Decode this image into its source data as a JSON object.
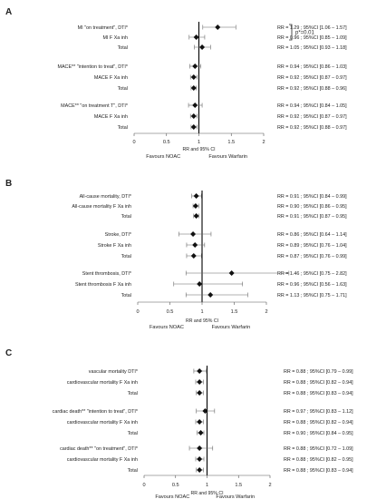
{
  "chart_data": [
    {
      "panel": "A",
      "type": "forest",
      "xlabel": "RR and 95% CI",
      "xlim": [
        0,
        2
      ],
      "xticks": [
        0,
        0.5,
        1,
        1.5,
        2
      ],
      "xtick_labels": [
        "0",
        "0.5",
        "1",
        "1.5",
        "2"
      ],
      "reference_line": 1,
      "favours_left": "Favours NOAC",
      "favours_right": "Favours Warfarin",
      "annotation": "p*=0.01",
      "groups": [
        {
          "rows": [
            {
              "label": "MI \"on treatment\", DTI*",
              "rr": 1.29,
              "lo": 1.06,
              "hi": 1.57,
              "text": "RR = 1.29 ; 95%CI [1.06 – 1.57]"
            },
            {
              "label": "MI  F Xa inh",
              "rr": 0.96,
              "lo": 0.85,
              "hi": 1.09,
              "text": "RR = 0.96 ; 95%CI [0.85 – 1.09]"
            },
            {
              "label": "Total",
              "rr": 1.05,
              "lo": 0.93,
              "hi": 1.18,
              "text": "RR = 1.05 ; 95%CI [0.93 – 1.18]"
            }
          ]
        },
        {
          "rows": [
            {
              "label": "MACE** \"intention to treat\", DTI*",
              "rr": 0.94,
              "lo": 0.86,
              "hi": 1.03,
              "text": "RR = 0.94 ; 95%CI [0.86 – 1.03]"
            },
            {
              "label": "MACE  F Xa inh",
              "rr": 0.92,
              "lo": 0.87,
              "hi": 0.97,
              "text": "RR = 0.92 ; 95%CI [0.87 – 0.97]"
            },
            {
              "label": "Total",
              "rr": 0.92,
              "lo": 0.88,
              "hi": 0.96,
              "text": "RR = 0.92 ; 95%CI [0.88 – 0.96]"
            }
          ]
        },
        {
          "rows": [
            {
              "label": "MACE** \"on treatment T\", DTI*",
              "rr": 0.94,
              "lo": 0.84,
              "hi": 1.05,
              "text": "RR = 0.94 ; 95%CI [0.84 – 1.05]"
            },
            {
              "label": "MACE F Xa inh",
              "rr": 0.92,
              "lo": 0.87,
              "hi": 0.97,
              "text": "RR = 0.92 ; 95%CI [0.87 – 0.97]"
            },
            {
              "label": "Total",
              "rr": 0.92,
              "lo": 0.88,
              "hi": 0.97,
              "text": "RR = 0.92 ; 95%CI [0.88 – 0.97]"
            }
          ]
        }
      ]
    },
    {
      "panel": "B",
      "type": "forest",
      "xlabel": "RR and 95% CI",
      "xlim": [
        0,
        2
      ],
      "xticks": [
        0,
        0.5,
        1,
        1.5,
        2
      ],
      "xtick_labels": [
        "0",
        "0.5",
        "1",
        "1.5",
        "2"
      ],
      "reference_line": 1,
      "favours_left": "Favours NOAC",
      "favours_right": "Favours Warfarin",
      "groups": [
        {
          "rows": [
            {
              "label": "All-cause mortality, DTI*",
              "rr": 0.91,
              "lo": 0.84,
              "hi": 0.99,
              "text": "RR = 0.91 ; 95%CI [0.84 – 0.99]"
            },
            {
              "label": "All-cause mortality F Xa inh",
              "rr": 0.9,
              "lo": 0.86,
              "hi": 0.95,
              "text": "RR = 0.90 ; 95%CI [0.86 – 0.95]"
            },
            {
              "label": "Total",
              "rr": 0.91,
              "lo": 0.87,
              "hi": 0.95,
              "text": "RR = 0.91 ; 95%CI [0.87 – 0.95]"
            }
          ]
        },
        {
          "rows": [
            {
              "label": "Stroke, DTI*",
              "rr": 0.86,
              "lo": 0.64,
              "hi": 1.14,
              "text": "RR = 0.86 ; 95%CI [0.64 – 1.14]"
            },
            {
              "label": "Stroke  F Xa inh",
              "rr": 0.89,
              "lo": 0.76,
              "hi": 1.04,
              "text": "RR = 0.89 ; 95%CI [0.76 – 1.04]"
            },
            {
              "label": "Total",
              "rr": 0.87,
              "lo": 0.76,
              "hi": 0.99,
              "text": "RR = 0.87 ; 95%CI [0.76 – 0.99]"
            }
          ]
        },
        {
          "rows": [
            {
              "label": "Stent thrombosis, DTI*",
              "rr": 1.46,
              "lo": 0.75,
              "hi": 2.82,
              "text": "RR = 1.46 ; 95%CI [0.75 – 2.82]"
            },
            {
              "label": "Stent thrombosis  F Xa inh",
              "rr": 0.96,
              "lo": 0.56,
              "hi": 1.63,
              "text": "RR = 0.96 ; 95%CI [0.56 – 1.63]"
            },
            {
              "label": "Total",
              "rr": 1.13,
              "lo": 0.75,
              "hi": 1.71,
              "text": "RR = 1.13 ; 95%CI [0.75 – 1.71]"
            }
          ]
        }
      ]
    },
    {
      "panel": "C",
      "type": "forest",
      "xlabel": "RR and 95% CI",
      "xlim": [
        0,
        2
      ],
      "xticks": [
        0,
        0.5,
        1,
        1.5,
        2
      ],
      "xtick_labels": [
        "0",
        "0.5",
        "1",
        "1.5",
        "2"
      ],
      "reference_line": 1,
      "favours_left": "Favours NOAC",
      "favours_right": "Favours Warfarin",
      "groups": [
        {
          "rows": [
            {
              "label": "vascular mortality DTI*",
              "rr": 0.88,
              "lo": 0.79,
              "hi": 0.99,
              "text": "RR = 0.88 ; 95%CI [0.79 – 0.99]"
            },
            {
              "label": "cardiovascular mortality F Xa inh",
              "rr": 0.88,
              "lo": 0.82,
              "hi": 0.94,
              "text": "RR = 0.88 ; 95%CI [0.82 – 0.94]"
            },
            {
              "label": "Total",
              "rr": 0.88,
              "lo": 0.83,
              "hi": 0.94,
              "text": "RR = 0.88 ; 95%CI [0.83 – 0.94]"
            }
          ]
        },
        {
          "rows": [
            {
              "label": "cardiac death** \"intention to treat\", DTI*",
              "rr": 0.97,
              "lo": 0.83,
              "hi": 1.12,
              "text": "RR = 0.97 ; 95%CI [0.83 – 1.12]"
            },
            {
              "label": "cardiovascular mortality F Xa inh",
              "rr": 0.88,
              "lo": 0.82,
              "hi": 0.94,
              "text": "RR = 0.88 ; 95%CI [0.82 – 0.94]"
            },
            {
              "label": "Total",
              "rr": 0.9,
              "lo": 0.84,
              "hi": 0.95,
              "text": "RR = 0.90 ; 95%CI [0.84 – 0.95]"
            }
          ]
        },
        {
          "rows": [
            {
              "label": "cardiac death** \"on treatment\", DTI*",
              "rr": 0.88,
              "lo": 0.72,
              "hi": 1.09,
              "text": "RR = 0.88 ; 95%CI [0.72 – 1.09]"
            },
            {
              "label": "cardiovascular mortality F Xa inh",
              "rr": 0.88,
              "lo": 0.82,
              "hi": 0.95,
              "text": "RR = 0.88 ; 95%CI [0.82 – 0.95]"
            },
            {
              "label": "Total",
              "rr": 0.88,
              "lo": 0.83,
              "hi": 0.94,
              "text": "RR = 0.88 ; 95%CI [0.83 – 0.94]"
            }
          ]
        }
      ]
    }
  ]
}
